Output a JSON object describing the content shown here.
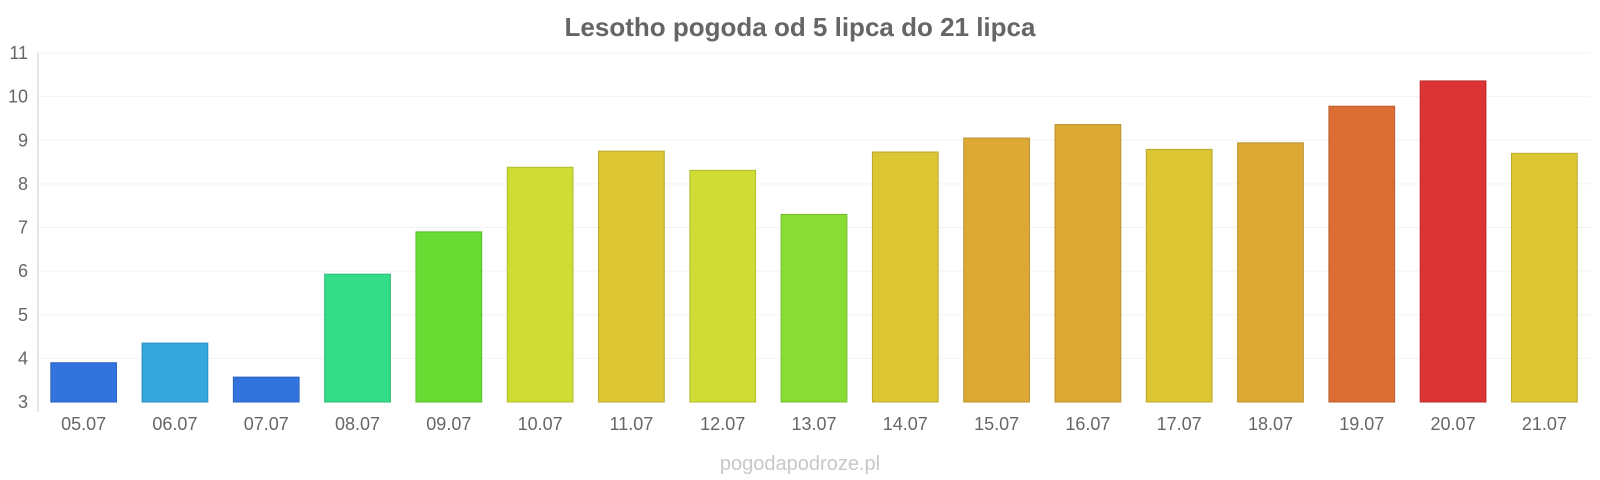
{
  "chart_data": {
    "type": "bar",
    "title": "Lesotho pogoda od 5 lipca do 21 lipca",
    "xlabel": "",
    "ylabel": "",
    "ylim": [
      3,
      11
    ],
    "yticks": [
      "3",
      "4",
      "5",
      "6",
      "7",
      "8",
      "9",
      "10",
      "11"
    ],
    "categories": [
      "05.07",
      "06.07",
      "07.07",
      "08.07",
      "09.07",
      "10.07",
      "11.07",
      "12.07",
      "13.07",
      "14.07",
      "15.07",
      "16.07",
      "17.07",
      "18.07",
      "19.07",
      "20.07",
      "21.07"
    ],
    "values": [
      3.9,
      4.35,
      3.57,
      5.93,
      6.9,
      8.38,
      8.75,
      8.31,
      7.3,
      8.73,
      9.05,
      9.36,
      8.79,
      8.94,
      9.78,
      10.36,
      8.7
    ],
    "colors": [
      "#3373de",
      "#34a7dc",
      "#3373de",
      "#34dc88",
      "#69dc34",
      "#cfdc34",
      "#dcc634",
      "#cfdc34",
      "#88dc34",
      "#dcc634",
      "#dca934",
      "#dca934",
      "#dcc634",
      "#dca934",
      "#dc6e34",
      "#dc3434",
      "#dcc634"
    ],
    "grid": true,
    "legend": "none"
  },
  "watermark": "pogodapodroze.pl"
}
